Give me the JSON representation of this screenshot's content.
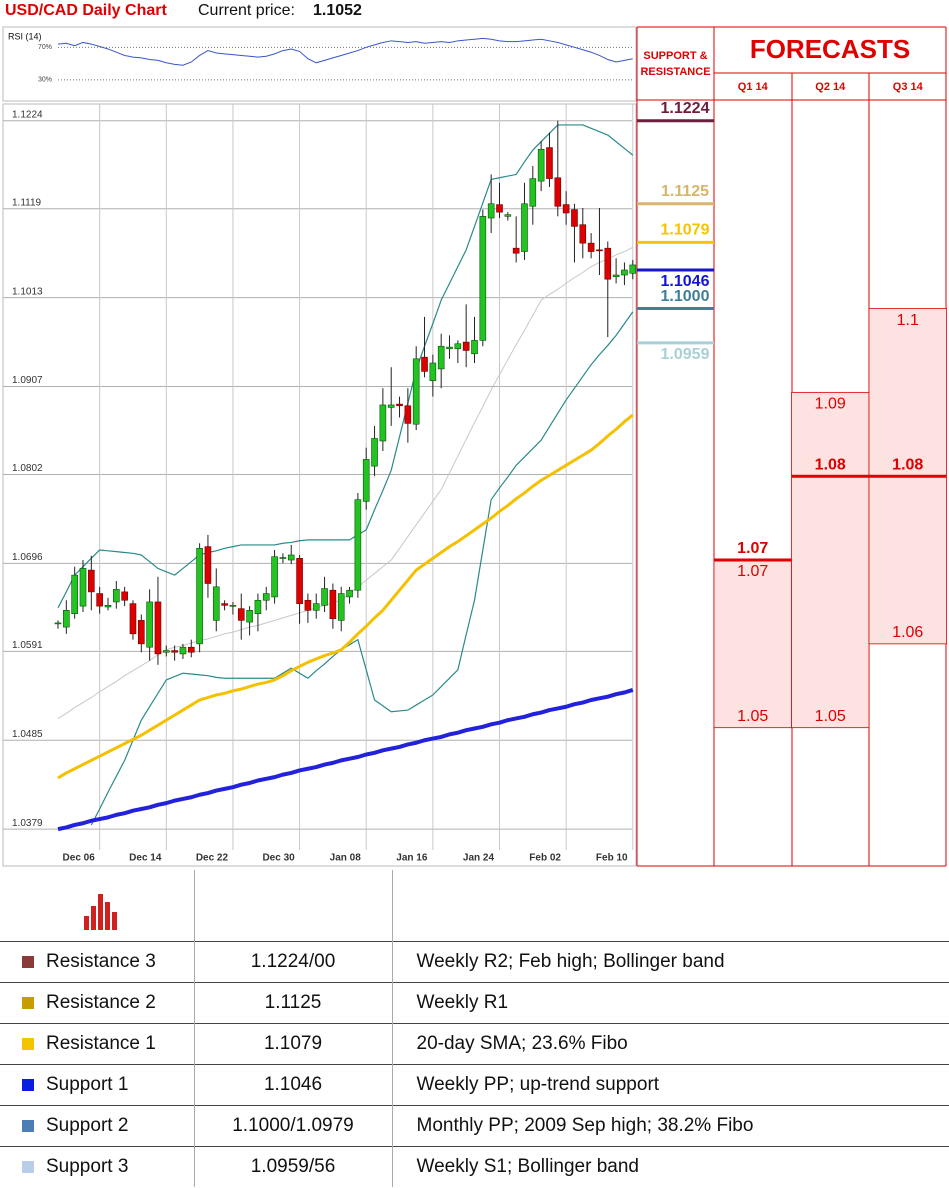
{
  "chart_data": [
    {
      "type": "candlestick",
      "title": "USD/CAD Daily Chart",
      "price_label": "Current price:",
      "current_price": 1.1052,
      "categories": [
        null,
        null,
        "Dec 06",
        null,
        null,
        null,
        null,
        null,
        null,
        null,
        "Dec 14",
        null,
        null,
        null,
        null,
        null,
        null,
        null,
        "Dec 22",
        null,
        null,
        null,
        null,
        null,
        null,
        null,
        "Dec 30",
        null,
        null,
        null,
        null,
        null,
        null,
        null,
        "Jan 08",
        null,
        null,
        null,
        null,
        null,
        null,
        null,
        "Jan 16",
        null,
        null,
        null,
        null,
        null,
        null,
        null,
        "Jan 24",
        null,
        null,
        null,
        null,
        null,
        null,
        null,
        "Feb 02",
        null,
        null,
        null,
        null,
        null,
        null,
        null,
        "Feb 10",
        null,
        null,
        null
      ],
      "open": [
        1.0624,
        1.062,
        1.0636,
        1.0645,
        1.0688,
        1.066,
        1.0644,
        1.065,
        1.0662,
        1.0648,
        1.0628,
        1.0596,
        1.065,
        1.059,
        1.0592,
        1.0588,
        1.0596,
        1.06,
        1.0716,
        1.0628,
        1.0648,
        1.0645,
        1.0642,
        1.0626,
        1.0636,
        1.0652,
        1.0656,
        1.0702,
        1.07,
        1.0702,
        1.0652,
        1.064,
        1.0646,
        1.0664,
        1.0628,
        1.0656,
        1.0664,
        1.077,
        1.0812,
        1.0842,
        1.0882,
        1.0886,
        1.0884,
        1.0862,
        1.0942,
        1.0914,
        1.0928,
        1.0952,
        1.0952,
        1.096,
        1.0946,
        1.0962,
        1.1108,
        1.1124,
        1.111,
        1.1072,
        1.1068,
        1.1122,
        1.1152,
        1.1192,
        1.1156,
        1.1124,
        1.1118,
        1.11,
        1.1078,
        1.107,
        1.1072,
        1.1038,
        1.104,
        1.1042
      ],
      "high": [
        1.0628,
        1.0652,
        1.0692,
        1.07,
        1.0705,
        1.0668,
        1.0655,
        1.0675,
        1.0668,
        1.0652,
        1.0635,
        1.0665,
        1.068,
        1.0598,
        1.0598,
        1.06,
        1.0605,
        1.072,
        1.073,
        1.069,
        1.0652,
        1.065,
        1.066,
        1.0645,
        1.066,
        1.0668,
        1.0712,
        1.0708,
        1.0718,
        1.0706,
        1.066,
        1.066,
        1.068,
        1.0672,
        1.0668,
        1.0668,
        1.078,
        1.0834,
        1.086,
        1.0905,
        1.093,
        1.0895,
        1.0905,
        1.0955,
        1.099,
        1.0945,
        1.097,
        1.0968,
        1.0962,
        1.1005,
        1.099,
        1.1118,
        1.116,
        1.115,
        1.1115,
        1.111,
        1.115,
        1.117,
        1.12,
        1.121,
        1.1224,
        1.114,
        1.1125,
        1.112,
        1.109,
        1.112,
        1.108,
        1.106,
        1.1055,
        1.1058
      ],
      "low": [
        1.0618,
        1.0612,
        1.063,
        1.0638,
        1.064,
        1.0636,
        1.064,
        1.0642,
        1.0645,
        1.0605,
        1.059,
        1.058,
        1.0575,
        1.0585,
        1.058,
        1.0582,
        1.0584,
        1.059,
        1.0655,
        1.0615,
        1.064,
        1.0635,
        1.0605,
        1.061,
        1.0615,
        1.064,
        1.0648,
        1.0696,
        1.0695,
        1.0624,
        1.0625,
        1.063,
        1.0638,
        1.0618,
        1.0615,
        1.0648,
        1.0655,
        1.076,
        1.08,
        1.083,
        1.086,
        1.087,
        1.084,
        1.0855,
        1.0918,
        1.0895,
        1.0905,
        1.094,
        1.0935,
        1.093,
        1.0935,
        1.0955,
        1.109,
        1.1108,
        1.1105,
        1.1055,
        1.1058,
        1.11,
        1.114,
        1.1145,
        1.111,
        1.11,
        1.1055,
        1.106,
        1.106,
        1.104,
        1.0966,
        1.103,
        1.1028,
        1.1035
      ],
      "close": [
        1.0625,
        1.064,
        1.0682,
        1.069,
        1.0662,
        1.0645,
        1.0646,
        1.0665,
        1.0652,
        1.0612,
        1.06,
        1.065,
        1.0588,
        1.0592,
        1.059,
        1.0596,
        1.059,
        1.0714,
        1.0672,
        1.0668,
        1.0646,
        1.0646,
        1.0628,
        1.064,
        1.0652,
        1.066,
        1.0704,
        1.0703,
        1.0706,
        1.0648,
        1.064,
        1.0648,
        1.0666,
        1.063,
        1.066,
        1.0664,
        1.0772,
        1.082,
        1.0845,
        1.0885,
        1.0885,
        1.0884,
        1.0863,
        1.094,
        1.0925,
        1.0935,
        1.0955,
        1.0954,
        1.0958,
        1.095,
        1.0962,
        1.111,
        1.1125,
        1.1115,
        1.1112,
        1.1066,
        1.1125,
        1.1155,
        1.119,
        1.1155,
        1.1122,
        1.1114,
        1.1098,
        1.1078,
        1.1068,
        1.1069,
        1.1035,
        1.104,
        1.1046,
        1.1052
      ],
      "up_color": "#22c422",
      "down_color": "#dd0000",
      "lines": [
        {
          "color": "#c8c8c8",
          "values": [
            1.0511,
            1.0517,
            1.0524,
            1.053,
            1.0536,
            1.0543,
            1.0549,
            1.0555,
            1.0562,
            1.0568,
            1.0574,
            1.058,
            1.0587,
            1.0593,
            1.0596,
            1.0598,
            1.0601,
            1.0604,
            1.0606,
            1.0609,
            1.0612,
            1.0614,
            1.0617,
            1.062,
            1.0622,
            1.0625,
            1.0628,
            1.0631,
            1.0634,
            1.0637,
            1.064,
            1.0643,
            1.0646,
            1.0649,
            1.0652,
            1.066,
            1.0668,
            1.0676,
            1.0684,
            1.0692,
            1.07,
            1.0714,
            1.0728,
            1.0742,
            1.0756,
            1.077,
            1.0784,
            1.0804,
            1.0824,
            1.0844,
            1.0864,
            1.0883,
            1.0903,
            1.0921,
            1.0939,
            1.0957,
            1.0974,
            1.0992,
            1.101,
            1.1017,
            1.1023,
            1.103,
            1.1037,
            1.1043,
            1.105,
            1.1055,
            1.1059,
            1.1064,
            1.1068,
            1.1073
          ]
        },
        {
          "color": "#2a8a8a",
          "values": [
            1.0643,
            1.0662,
            1.0682,
            1.0692,
            1.0702,
            1.0712,
            1.0711,
            1.071,
            1.0709,
            1.0708,
            1.0706,
            1.0698,
            1.069,
            1.0686,
            1.0682,
            1.069,
            1.0698,
            1.0706,
            1.0709,
            1.0711,
            1.0714,
            1.0716,
            1.0718,
            1.0718,
            1.0718,
            1.0718,
            1.0718,
            1.072,
            1.0721,
            1.0723,
            1.0724,
            1.0724,
            1.0724,
            1.0724,
            1.0724,
            1.0724,
            1.073,
            1.0736,
            1.076,
            1.0783,
            1.0807,
            1.0847,
            1.0887,
            1.0927,
            1.0955,
            1.0982,
            1.101,
            1.103,
            1.105,
            1.107,
            1.1098,
            1.1126,
            1.1154,
            1.1156,
            1.1158,
            1.116,
            1.1175,
            1.1189,
            1.1199,
            1.1209,
            1.1219,
            1.1219,
            1.1219,
            1.1219,
            1.1215,
            1.1211,
            1.1207,
            1.1199,
            1.1191,
            1.1183
          ]
        },
        {
          "color": "#2a8a8a",
          "values": [
            null,
            null,
            null,
            null,
            1.0384,
            1.0403,
            1.0423,
            1.0442,
            1.0461,
            1.0485,
            1.0509,
            1.0525,
            1.0541,
            1.0557,
            1.0561,
            1.0565,
            1.0564,
            1.0563,
            1.0562,
            1.056,
            1.0559,
            1.0559,
            1.0559,
            1.0559,
            1.0559,
            1.0559,
            1.0559,
            1.0565,
            1.0571,
            1.0565,
            1.0559,
            1.0568,
            1.0576,
            1.0585,
            1.0593,
            1.0599,
            1.0605,
            1.0569,
            1.0533,
            1.0526,
            1.0519,
            1.052,
            1.0521,
            1.0527,
            1.0533,
            1.0539,
            1.0549,
            1.0559,
            1.0569,
            1.0611,
            1.0652,
            1.0712,
            1.0772,
            1.0786,
            1.0799,
            1.0813,
            1.0823,
            1.0833,
            1.0843,
            1.0859,
            1.0875,
            1.0891,
            1.0905,
            1.0919,
            1.0933,
            1.0945,
            1.0956,
            1.0968,
            1.0982,
            1.0996
          ]
        },
        {
          "color": "#f5c000",
          "values": [
            1.044,
            1.0446,
            1.0451,
            1.0456,
            1.0461,
            1.0466,
            1.0471,
            1.0476,
            1.0481,
            1.0486,
            1.0491,
            1.0497,
            1.0503,
            1.0509,
            1.0515,
            1.0521,
            1.0527,
            1.0533,
            1.0536,
            1.0539,
            1.0541,
            1.0544,
            1.0546,
            1.0549,
            1.0552,
            1.0554,
            1.0557,
            1.0562,
            1.0568,
            1.0573,
            1.0578,
            1.0582,
            1.0586,
            1.0589,
            1.0593,
            1.0602,
            1.0612,
            1.0621,
            1.0631,
            1.064,
            1.0652,
            1.0664,
            1.0676,
            1.0688,
            1.0695,
            1.0702,
            1.0709,
            1.0716,
            1.0722,
            1.0729,
            1.0736,
            1.0743,
            1.075,
            1.0758,
            1.0765,
            1.0773,
            1.078,
            1.0788,
            1.0795,
            1.0801,
            1.0807,
            1.0813,
            1.0819,
            1.0825,
            1.0831,
            1.0839,
            1.0848,
            1.0856,
            1.0865,
            1.0873
          ]
        },
        {
          "color": "#2222dd",
          "values": [
            1.0379,
            1.0381,
            1.0384,
            1.0386,
            1.0389,
            1.0391,
            1.0393,
            1.0396,
            1.0398,
            1.0401,
            1.0403,
            1.0405,
            1.0408,
            1.041,
            1.0413,
            1.0415,
            1.0417,
            1.042,
            1.0422,
            1.0425,
            1.0427,
            1.0429,
            1.0432,
            1.0434,
            1.0437,
            1.0439,
            1.0441,
            1.0444,
            1.0446,
            1.0449,
            1.0451,
            1.0453,
            1.0456,
            1.0458,
            1.0461,
            1.0463,
            1.0465,
            1.0468,
            1.047,
            1.0473,
            1.0475,
            1.0477,
            1.048,
            1.0482,
            1.0485,
            1.0487,
            1.0489,
            1.0492,
            1.0494,
            1.0497,
            1.0499,
            1.0501,
            1.0504,
            1.0506,
            1.0509,
            1.0511,
            1.0513,
            1.0516,
            1.0518,
            1.0521,
            1.0523,
            1.0525,
            1.0528,
            1.053,
            1.0533,
            1.0535,
            1.0537,
            1.054,
            1.0542,
            1.0545
          ]
        }
      ],
      "ylim": [
        1.0335,
        1.1244
      ],
      "yticks": [
        1.0379,
        1.0485,
        1.0591,
        1.0696,
        1.0802,
        1.0907,
        1.1013,
        1.1119,
        1.1224
      ],
      "grid": true,
      "levels_title": "SUPPORT & RESISTANCE",
      "levels": {
        "values": [
          1.1224,
          1.1125,
          1.1079,
          1.1046,
          1.1,
          1.0959
        ],
        "value_labels": [
          "1.1224",
          "1.1125",
          "1.1079",
          "1.1046",
          "1.1000",
          "1.0959"
        ],
        "colors": [
          "#6b1f3e",
          "#d9b46c",
          "#f5c400",
          "#1515d0",
          "#3f7f9a",
          "#a9d0d6"
        ]
      },
      "forecast_title": "FORECASTS",
      "forecast_categories": [
        "Q1 14",
        "Q2 14",
        "Q3 14"
      ],
      "forecast_high": [
        1.07,
        1.09,
        1.1
      ],
      "forecast_median": [
        1.07,
        1.08,
        1.08
      ],
      "forecast_low": [
        1.05,
        1.05,
        1.06
      ],
      "forecast_color": "#e00000"
    },
    {
      "type": "line",
      "title": "RSI (14)",
      "color": "#3a55c8",
      "values": [
        74,
        75,
        72,
        76,
        74,
        71,
        68,
        64,
        60,
        58,
        57,
        55,
        54,
        51,
        49,
        48,
        52,
        60,
        66,
        63,
        62,
        61,
        60,
        59,
        58,
        59,
        62,
        66,
        68,
        65,
        56,
        51,
        54,
        57,
        60,
        63,
        66,
        70,
        73,
        76,
        78,
        77,
        76,
        77,
        75,
        76,
        77,
        76,
        78,
        79,
        80,
        81,
        80,
        78,
        77,
        77,
        78,
        79,
        80,
        78,
        76,
        73,
        70,
        67,
        64,
        60,
        55,
        52,
        54,
        56
      ],
      "ylim": [
        4,
        95
      ],
      "yticks": [
        {
          "value": 70,
          "label": "70%"
        },
        {
          "value": 30,
          "label": "30%"
        }
      ]
    }
  ],
  "table": {
    "rows": [
      {
        "name": "Resistance 3",
        "value": "1.1224/00",
        "description": "Weekly R2; Feb high; Bollinger band",
        "color": "#8b3a3a"
      },
      {
        "name": "Resistance 2",
        "value": "1.1125",
        "description": "Weekly R1",
        "color": "#c89c00"
      },
      {
        "name": "Resistance 1",
        "value": "1.1079",
        "description": "20-day SMA; 23.6% Fibo",
        "color": "#f5c400"
      },
      {
        "name": "Support 1",
        "value": "1.1046",
        "description": "Weekly PP; up-trend support",
        "color": "#0a1ee0"
      },
      {
        "name": "Support 2",
        "value": "1.1000/1.0979",
        "description": "Monthly PP; 2009 Sep high; 38.2% Fibo",
        "color": "#4a7eb5"
      },
      {
        "name": "Support 3",
        "value": "1.0959/56",
        "description": "Weekly S1; Bollinger band",
        "color": "#b9cde8"
      }
    ]
  }
}
